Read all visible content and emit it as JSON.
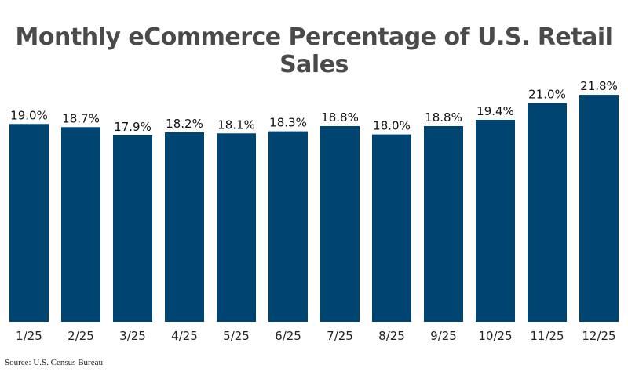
{
  "chart_data": {
    "type": "bar",
    "title": "Monthly eCommerce Percentage of U.S. Retail Sales",
    "categories": [
      "1/25",
      "2/25",
      "3/25",
      "4/25",
      "5/25",
      "6/25",
      "7/25",
      "8/25",
      "9/25",
      "10/25",
      "11/25",
      "12/25"
    ],
    "values": [
      19.0,
      18.7,
      17.9,
      18.2,
      18.1,
      18.3,
      18.8,
      18.0,
      18.8,
      19.4,
      21.0,
      21.8
    ],
    "value_labels": [
      "19.0%",
      "18.7%",
      "17.9%",
      "18.2%",
      "18.1%",
      "18.3%",
      "18.8%",
      "18.0%",
      "18.8%",
      "19.4%",
      "21.0%",
      "21.8%"
    ],
    "xlabel": "",
    "ylabel": "",
    "ylim": [
      0,
      22.5
    ],
    "grid": false,
    "legend": "none",
    "bar_color": "#004472"
  },
  "source": "Source: U.S. Census Bureau"
}
